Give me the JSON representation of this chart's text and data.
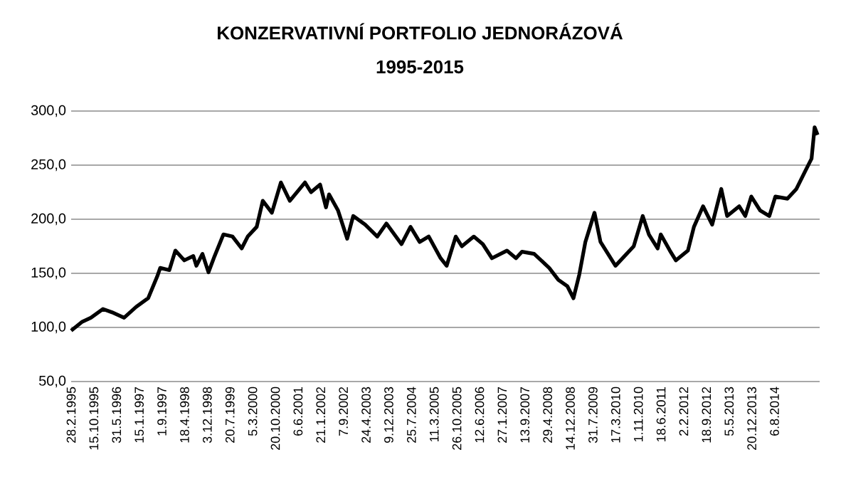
{
  "chart_data": {
    "type": "line",
    "title": "KONZERVATIVNÍ  PORTFOLIO JEDNORÁZOVÁ",
    "subtitle": "1995-2015",
    "xlim": [
      "1995-02-28",
      "2015-11-05"
    ],
    "ylim": [
      50,
      300
    ],
    "yticks": [
      {
        "value": 50,
        "label": "50,0"
      },
      {
        "value": 100,
        "label": "100,0"
      },
      {
        "value": 150,
        "label": "150,0"
      },
      {
        "value": 200,
        "label": "200,0"
      },
      {
        "value": 250,
        "label": "250,0"
      },
      {
        "value": 300,
        "label": "300,0"
      }
    ],
    "xticks": [
      {
        "value": "1995-02-28",
        "label": "28.2.1995"
      },
      {
        "value": "1995-10-15",
        "label": "15.10.1995"
      },
      {
        "value": "1996-05-31",
        "label": "31.5.1996"
      },
      {
        "value": "1997-01-15",
        "label": "15.1.1997"
      },
      {
        "value": "1997-09-01",
        "label": "1.9.1997"
      },
      {
        "value": "1998-04-18",
        "label": "18.4.1998"
      },
      {
        "value": "1998-12-03",
        "label": "3.12.1998"
      },
      {
        "value": "1999-07-20",
        "label": "20.7.1999"
      },
      {
        "value": "2000-03-05",
        "label": "5.3.2000"
      },
      {
        "value": "2000-10-20",
        "label": "20.10.2000"
      },
      {
        "value": "2001-06-06",
        "label": "6.6.2001"
      },
      {
        "value": "2002-01-21",
        "label": "21.1.2002"
      },
      {
        "value": "2002-09-07",
        "label": "7.9.2002"
      },
      {
        "value": "2003-04-24",
        "label": "24.4.2003"
      },
      {
        "value": "2003-12-09",
        "label": "9.12.2003"
      },
      {
        "value": "2004-07-25",
        "label": "25.7.2004"
      },
      {
        "value": "2005-03-11",
        "label": "11.3.2005"
      },
      {
        "value": "2005-10-26",
        "label": "26.10.2005"
      },
      {
        "value": "2006-06-12",
        "label": "12.6.2006"
      },
      {
        "value": "2007-01-27",
        "label": "27.1.2007"
      },
      {
        "value": "2007-09-13",
        "label": "13.9.2007"
      },
      {
        "value": "2008-04-29",
        "label": "29.4.2008"
      },
      {
        "value": "2008-12-14",
        "label": "14.12.2008"
      },
      {
        "value": "2009-07-31",
        "label": "31.7.2009"
      },
      {
        "value": "2010-03-17",
        "label": "17.3.2010"
      },
      {
        "value": "2010-11-01",
        "label": "1.11.2010"
      },
      {
        "value": "2011-06-18",
        "label": "18.6.2011"
      },
      {
        "value": "2012-02-02",
        "label": "2.2.2012"
      },
      {
        "value": "2012-09-18",
        "label": "18.9.2012"
      },
      {
        "value": "2013-05-05",
        "label": "5.5.2013"
      },
      {
        "value": "2013-12-20",
        "label": "20.12.2013"
      },
      {
        "value": "2014-08-06",
        "label": "6.8.2014"
      }
    ],
    "grid": "y",
    "x": [
      "1995-02-28",
      "1995-06",
      "1995-09",
      "1996-01",
      "1996-04",
      "1996-08",
      "1996-12",
      "1997-04",
      "1997-07",
      "1997-08",
      "1997-11",
      "1998-01",
      "1998-04",
      "1998-07",
      "1998-08",
      "1998-10",
      "1998-12",
      "1999-02",
      "1999-05",
      "1999-08",
      "1999-11",
      "2000-01",
      "2000-04",
      "2000-06",
      "2000-09",
      "2000-12",
      "2001-03",
      "2001-08",
      "2001-10",
      "2002-01",
      "2002-03",
      "2002-04",
      "2002-07",
      "2002-10",
      "2002-12",
      "2003-04",
      "2003-08",
      "2003-11",
      "2004-04",
      "2004-07",
      "2004-10",
      "2005-01",
      "2005-05",
      "2005-07",
      "2005-10",
      "2005-12",
      "2006-04",
      "2006-07",
      "2006-10",
      "2007-03",
      "2007-06",
      "2007-08",
      "2007-12",
      "2008-05",
      "2008-08",
      "2008-11",
      "2009-01",
      "2009-03",
      "2009-05",
      "2009-08",
      "2009-10",
      "2010-03",
      "2010-09",
      "2010-12",
      "2011-02",
      "2011-05",
      "2011-06",
      "2011-09",
      "2011-11",
      "2012-03",
      "2012-05",
      "2012-08",
      "2012-11",
      "2013-02",
      "2013-04",
      "2013-08",
      "2013-10",
      "2013-12",
      "2014-03",
      "2014-06",
      "2014-08",
      "2014-12",
      "2015-03",
      "2015-06",
      "2015-08",
      "2015-09",
      "2015-10"
    ],
    "series": [
      {
        "color": "#000000",
        "values": [
          97,
          105,
          109,
          117,
          114,
          109,
          119,
          127,
          147,
          155,
          153,
          171,
          162,
          166,
          157,
          168,
          151,
          166,
          186,
          184,
          173,
          184,
          193,
          217,
          206,
          234,
          217,
          234,
          225,
          232,
          211,
          223,
          208,
          182,
          203,
          195,
          184,
          196,
          177,
          193,
          179,
          184,
          164,
          157,
          184,
          175,
          184,
          177,
          164,
          171,
          164,
          170,
          168,
          155,
          144,
          138,
          127,
          149,
          179,
          206,
          179,
          157,
          175,
          203,
          186,
          173,
          186,
          171,
          162,
          171,
          193,
          212,
          195,
          228,
          203,
          212,
          203,
          221,
          208,
          203,
          221,
          219,
          228,
          245,
          256,
          285,
          278
        ]
      }
    ]
  }
}
